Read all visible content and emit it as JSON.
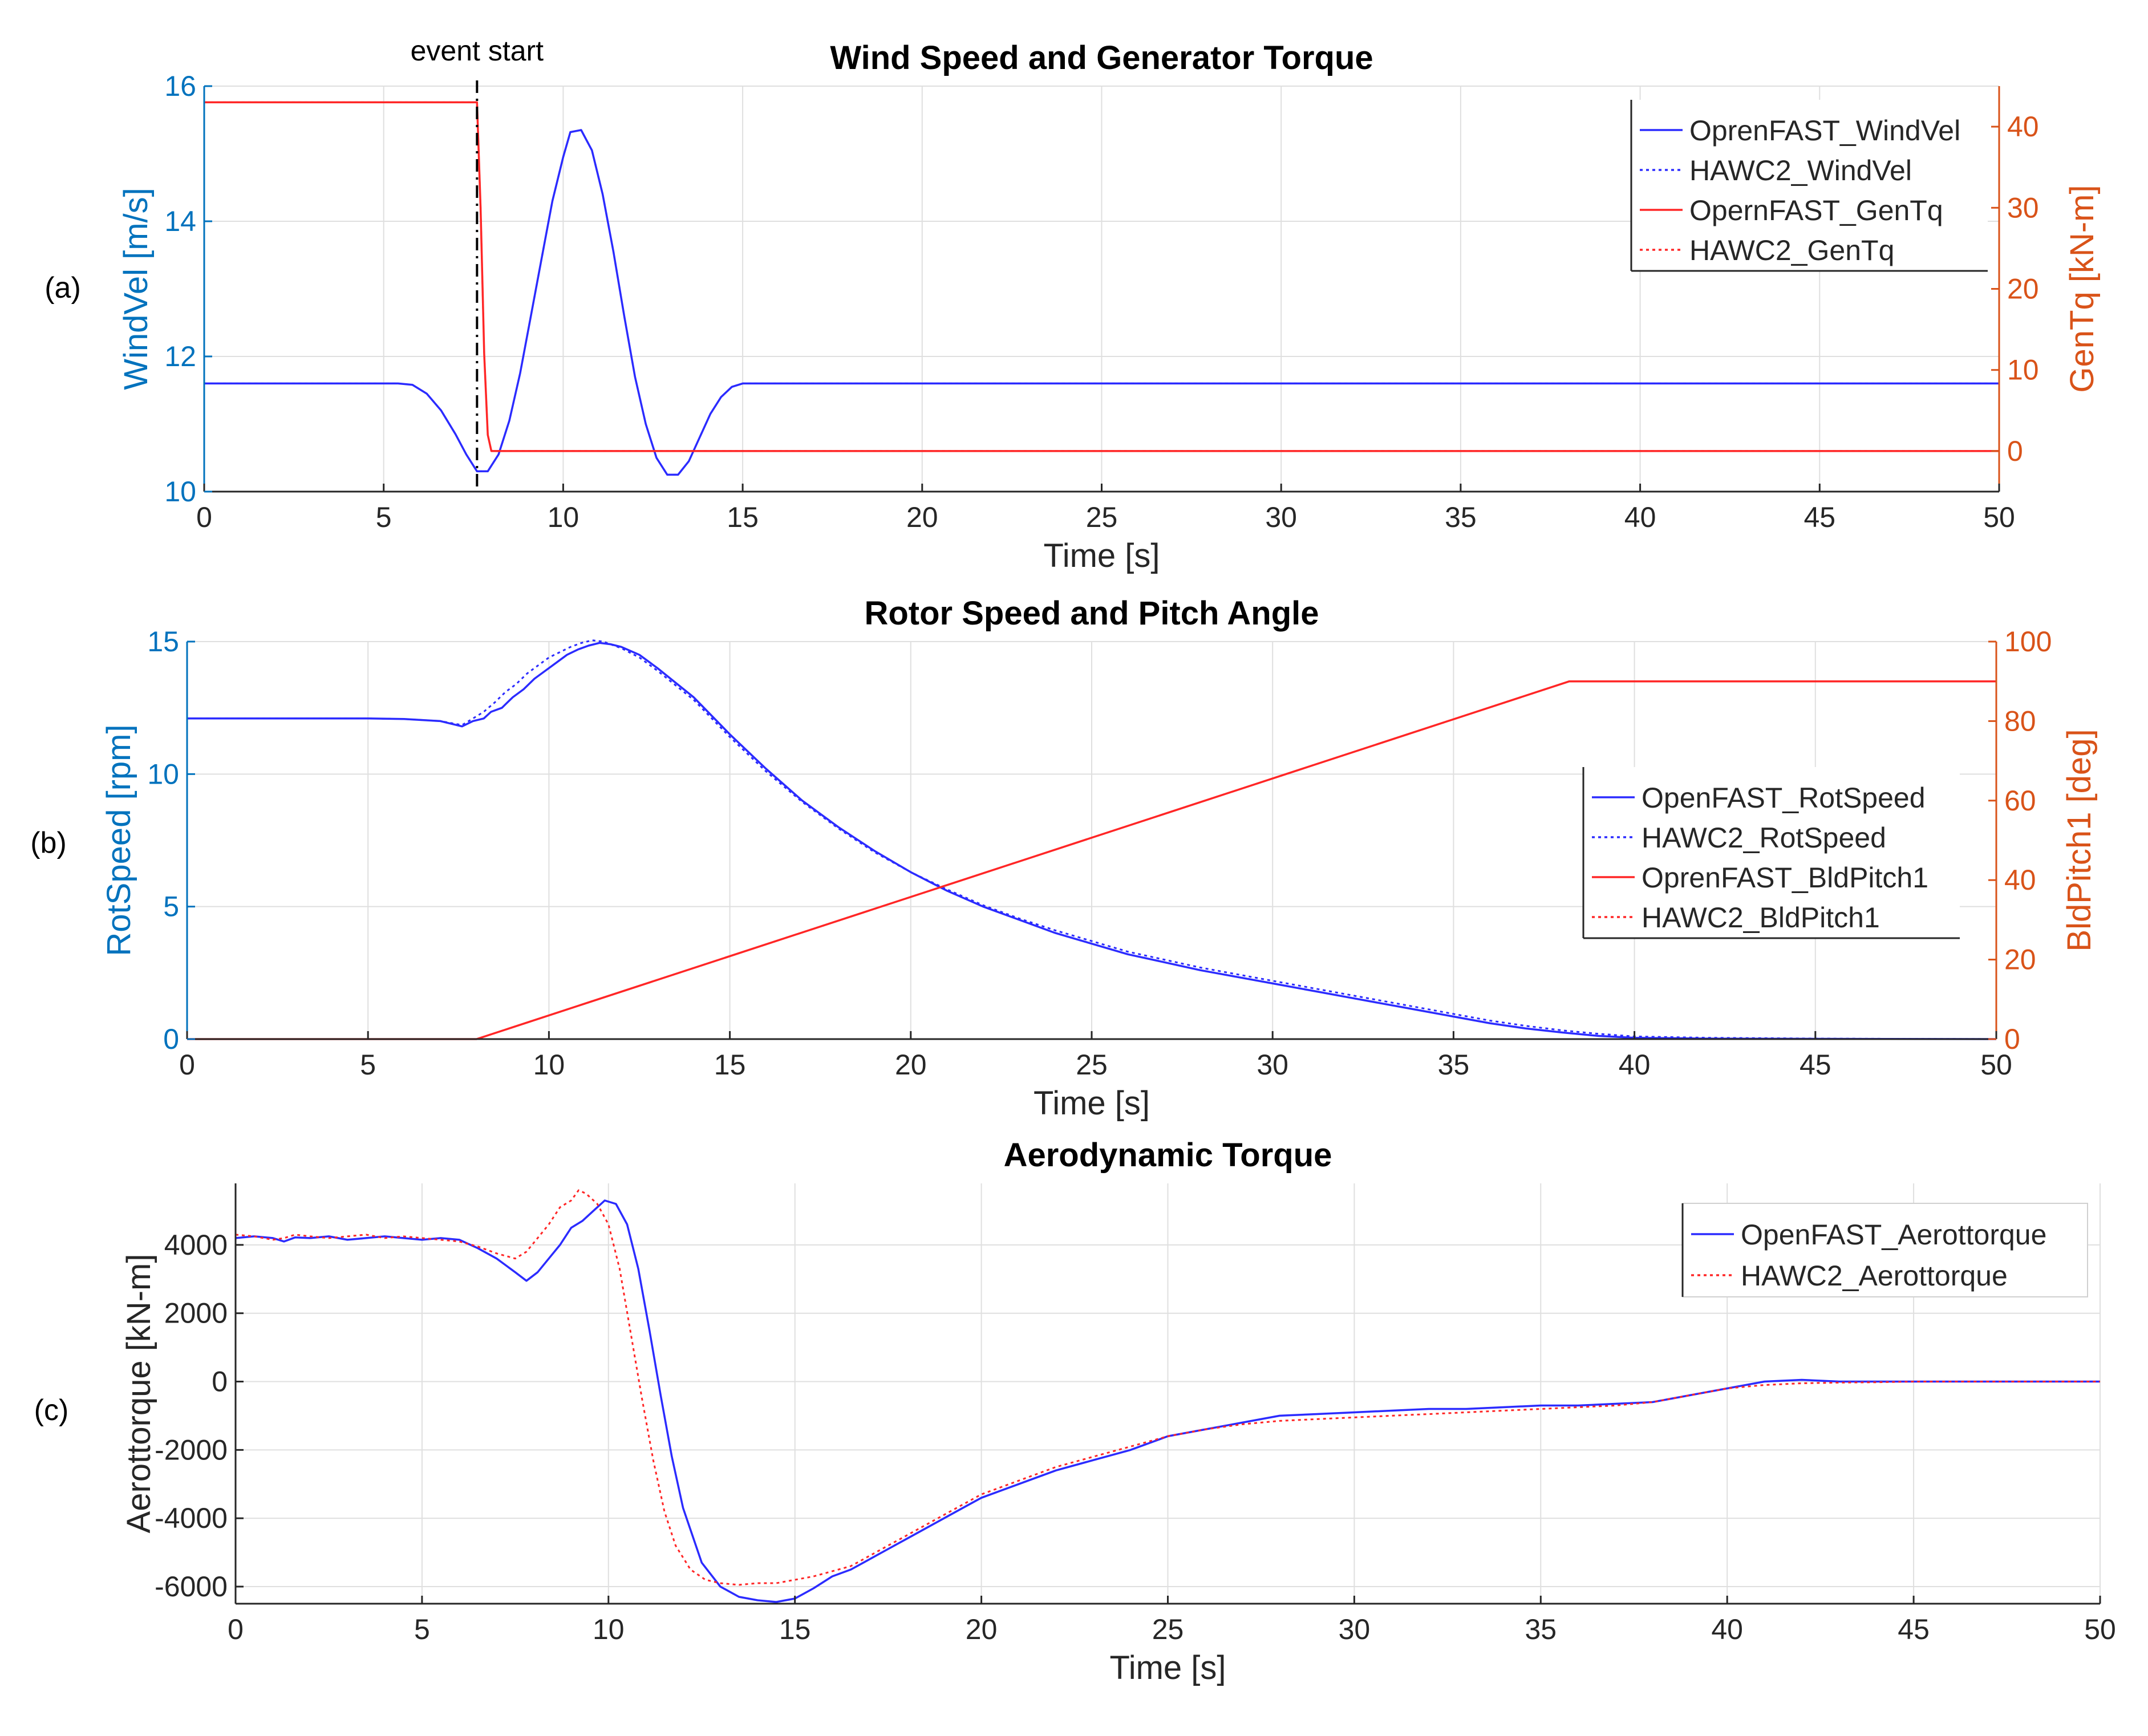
{
  "figure": {
    "panel_labels": [
      "(a)",
      "(b)",
      "(c)"
    ],
    "colors": {
      "axis": "#262626",
      "grid": "#dfdfdf",
      "left_axis_a_b": "#0072BD",
      "right_axis": "#D95319",
      "blue_series": "#2b2bff",
      "red_series": "#ff2626",
      "event_line": "#000000"
    }
  },
  "chart_data": [
    {
      "type": "line",
      "panel": "(a)",
      "title": "Wind Speed and Generator Torque",
      "xlabel": "Time [s]",
      "ylabel": "WindVel [m/s]",
      "ylabel_right": "GenTq [kN-m]",
      "xlim": [
        0,
        50
      ],
      "ylim": [
        10,
        16
      ],
      "ylim_right": [
        -5,
        45
      ],
      "x_ticks": [
        "0",
        "5",
        "10",
        "15",
        "20",
        "25",
        "30",
        "35",
        "40",
        "45",
        "50"
      ],
      "y_ticks": [
        "10",
        "12",
        "14",
        "16"
      ],
      "y_ticks_right": [
        "0",
        "10",
        "20",
        "30",
        "40"
      ],
      "grid": true,
      "legend_position": "top-right",
      "annotation": {
        "text": "event start",
        "x": 7.6
      },
      "series": [
        {
          "name": "OprenFAST_WindVel",
          "axis": "left",
          "style": "solid",
          "color": "blue",
          "x": [
            0,
            5.0,
            5.4,
            5.8,
            6.2,
            6.6,
            7.0,
            7.3,
            7.6,
            7.9,
            8.2,
            8.5,
            8.8,
            9.1,
            9.4,
            9.7,
            10.0,
            10.2,
            10.5,
            10.8,
            11.1,
            11.4,
            11.7,
            12.0,
            12.3,
            12.6,
            12.9,
            13.2,
            13.5,
            13.8,
            14.1,
            14.4,
            14.7,
            15.0,
            15.3,
            50
          ],
          "y": [
            11.6,
            11.6,
            11.6,
            11.58,
            11.45,
            11.2,
            10.85,
            10.55,
            10.3,
            10.3,
            10.55,
            11.05,
            11.75,
            12.6,
            13.45,
            14.3,
            14.95,
            15.32,
            15.35,
            15.05,
            14.4,
            13.55,
            12.6,
            11.7,
            11.0,
            10.5,
            10.25,
            10.25,
            10.45,
            10.8,
            11.15,
            11.4,
            11.55,
            11.6,
            11.6,
            11.6
          ]
        },
        {
          "name": "HAWC2_WindVel",
          "axis": "left",
          "style": "dotted",
          "color": "blue",
          "x": [
            0,
            5.0,
            5.4,
            5.8,
            6.2,
            6.6,
            7.0,
            7.3,
            7.6,
            7.9,
            8.2,
            8.5,
            8.8,
            9.1,
            9.4,
            9.7,
            10.0,
            10.2,
            10.5,
            10.8,
            11.1,
            11.4,
            11.7,
            12.0,
            12.3,
            12.6,
            12.9,
            13.2,
            13.5,
            13.8,
            14.1,
            14.4,
            14.7,
            15.0,
            15.3,
            50
          ],
          "y": [
            11.6,
            11.6,
            11.6,
            11.58,
            11.45,
            11.2,
            10.85,
            10.55,
            10.3,
            10.3,
            10.55,
            11.05,
            11.75,
            12.6,
            13.45,
            14.3,
            14.95,
            15.32,
            15.35,
            15.05,
            14.4,
            13.55,
            12.6,
            11.7,
            11.0,
            10.5,
            10.25,
            10.25,
            10.45,
            10.8,
            11.15,
            11.4,
            11.55,
            11.6,
            11.6,
            11.6
          ]
        },
        {
          "name": "OpernFAST_GenTq",
          "axis": "right",
          "style": "solid",
          "color": "red",
          "x": [
            0,
            7.6,
            7.7,
            7.8,
            7.9,
            8.0,
            50
          ],
          "y": [
            43,
            43,
            30,
            12,
            2,
            0,
            0
          ]
        },
        {
          "name": "HAWC2_GenTq",
          "axis": "right",
          "style": "dotted",
          "color": "red",
          "x": [
            0,
            7.6,
            7.7,
            7.8,
            7.9,
            8.0,
            50
          ],
          "y": [
            43,
            43,
            30,
            12,
            2,
            0,
            0
          ]
        }
      ]
    },
    {
      "type": "line",
      "panel": "(b)",
      "title": "Rotor Speed and Pitch Angle",
      "xlabel": "Time [s]",
      "ylabel": "RotSpeed [rpm]",
      "ylabel_right": "BldPitch1 [deg]",
      "xlim": [
        0,
        50
      ],
      "ylim": [
        0,
        15
      ],
      "ylim_right": [
        0,
        100
      ],
      "x_ticks": [
        "0",
        "5",
        "10",
        "15",
        "20",
        "25",
        "30",
        "35",
        "40",
        "45",
        "50"
      ],
      "y_ticks": [
        "0",
        "5",
        "10",
        "15"
      ],
      "y_ticks_right": [
        "0",
        "20",
        "40",
        "60",
        "80",
        "100"
      ],
      "grid": true,
      "legend_position": "center-right",
      "series": [
        {
          "name": "OpenFAST_RotSpeed",
          "axis": "left",
          "style": "solid",
          "color": "blue",
          "x": [
            0,
            5,
            6,
            7,
            7.6,
            7.9,
            8.2,
            8.4,
            8.7,
            9.0,
            9.3,
            9.6,
            9.9,
            10.2,
            10.5,
            10.8,
            11.1,
            11.4,
            11.7,
            12.0,
            12.5,
            13,
            14,
            15,
            16,
            17,
            18,
            19,
            20,
            21,
            22,
            23,
            24,
            25,
            26,
            27,
            28,
            29,
            30,
            31,
            32,
            33,
            34,
            35,
            36,
            37,
            38,
            39,
            40,
            42,
            45,
            50
          ],
          "y": [
            12.1,
            12.1,
            12.08,
            12.0,
            11.8,
            12.0,
            12.1,
            12.35,
            12.5,
            12.9,
            13.2,
            13.6,
            13.9,
            14.2,
            14.5,
            14.7,
            14.85,
            14.95,
            14.9,
            14.8,
            14.5,
            14.0,
            12.9,
            11.5,
            10.2,
            9.0,
            8.0,
            7.1,
            6.3,
            5.6,
            5.0,
            4.5,
            4.0,
            3.6,
            3.2,
            2.9,
            2.6,
            2.35,
            2.1,
            1.85,
            1.6,
            1.35,
            1.1,
            0.85,
            0.6,
            0.4,
            0.25,
            0.12,
            0.05,
            0.02,
            0.01,
            0.0
          ]
        },
        {
          "name": "HAWC2_RotSpeed",
          "axis": "left",
          "style": "dotted",
          "color": "blue",
          "x": [
            0,
            5,
            6,
            7,
            7.6,
            7.9,
            8.2,
            8.5,
            8.8,
            9.1,
            9.4,
            9.7,
            10.0,
            10.3,
            10.6,
            10.9,
            11.2,
            11.5,
            11.8,
            12.0,
            12.5,
            13,
            14,
            15,
            16,
            17,
            18,
            19,
            20,
            21,
            22,
            23,
            24,
            25,
            26,
            27,
            28,
            29,
            30,
            31,
            32,
            33,
            34,
            35,
            36,
            37,
            38,
            39,
            40,
            42,
            45,
            50
          ],
          "y": [
            12.1,
            12.1,
            12.08,
            12.0,
            11.85,
            12.1,
            12.35,
            12.7,
            13.1,
            13.4,
            13.8,
            14.1,
            14.4,
            14.6,
            14.8,
            14.95,
            15.05,
            15.0,
            14.85,
            14.75,
            14.4,
            13.9,
            12.8,
            11.4,
            10.1,
            8.95,
            7.95,
            7.05,
            6.3,
            5.65,
            5.05,
            4.55,
            4.1,
            3.7,
            3.3,
            3.0,
            2.7,
            2.45,
            2.2,
            1.95,
            1.7,
            1.45,
            1.2,
            0.95,
            0.7,
            0.5,
            0.33,
            0.2,
            0.1,
            0.05,
            0.02,
            0.0
          ]
        },
        {
          "name": "OprenFAST_BldPitch1",
          "axis": "right",
          "style": "solid",
          "color": "red",
          "x": [
            0,
            7.6,
            8.0,
            38.2,
            50
          ],
          "y": [
            0,
            0,
            0,
            90,
            90
          ]
        },
        {
          "name": "HAWC2_BldPitch1",
          "axis": "right",
          "style": "dotted",
          "color": "red",
          "x": [
            0,
            7.6,
            8.0,
            38.2,
            50
          ],
          "y": [
            0,
            0,
            0,
            90,
            90
          ]
        }
      ]
    },
    {
      "type": "line",
      "panel": "(c)",
      "title": "Aerodynamic Torque",
      "xlabel": "Time [s]",
      "ylabel": "Aerottorque [kN-m]",
      "xlim": [
        0,
        50
      ],
      "ylim": [
        -6500,
        5800
      ],
      "x_ticks": [
        "0",
        "5",
        "10",
        "15",
        "20",
        "25",
        "30",
        "35",
        "40",
        "45",
        "50"
      ],
      "y_ticks": [
        "-6000",
        "-4000",
        "-2000",
        "0",
        "2000",
        "4000"
      ],
      "grid": true,
      "legend_position": "top-right",
      "series": [
        {
          "name": "OpenFAST_Aerottorque",
          "style": "solid",
          "color": "blue",
          "x": [
            0,
            0.5,
            1.0,
            1.3,
            1.6,
            2.0,
            2.5,
            3.0,
            3.5,
            4.0,
            4.5,
            5.0,
            5.5,
            6.0,
            6.5,
            7.0,
            7.5,
            7.8,
            8.1,
            8.4,
            8.7,
            9.0,
            9.3,
            9.6,
            9.9,
            10.2,
            10.5,
            10.8,
            11.1,
            11.4,
            11.7,
            12.0,
            12.5,
            13.0,
            13.5,
            14.0,
            14.5,
            15.0,
            15.5,
            16.0,
            16.5,
            17.0,
            17.5,
            18.0,
            18.5,
            19.0,
            19.5,
            20.0,
            21.0,
            22.0,
            23.0,
            24.0,
            25.0,
            26.0,
            27.0,
            28.0,
            29.0,
            30.0,
            31.0,
            32.0,
            33.0,
            34.0,
            35.0,
            36.0,
            37.0,
            38.0,
            39.0,
            40.0,
            41.0,
            42.0,
            43.0,
            44.0,
            45.0,
            47.0,
            50.0
          ],
          "y": [
            4200,
            4250,
            4200,
            4100,
            4220,
            4200,
            4250,
            4150,
            4200,
            4250,
            4200,
            4150,
            4200,
            4150,
            3900,
            3600,
            3200,
            2950,
            3200,
            3600,
            4000,
            4500,
            4700,
            5000,
            5300,
            5200,
            4600,
            3300,
            1500,
            -400,
            -2200,
            -3700,
            -5300,
            -6000,
            -6300,
            -6400,
            -6450,
            -6350,
            -6050,
            -5700,
            -5500,
            -5200,
            -4900,
            -4600,
            -4300,
            -4000,
            -3700,
            -3400,
            -3000,
            -2600,
            -2300,
            -2000,
            -1600,
            -1400,
            -1200,
            -1000,
            -950,
            -900,
            -850,
            -800,
            -800,
            -750,
            -700,
            -700,
            -650,
            -600,
            -400,
            -200,
            0,
            50,
            0,
            0,
            0,
            0,
            0
          ]
        },
        {
          "name": "HAWC2_Aerottorque",
          "style": "dotted",
          "color": "red",
          "x": [
            0,
            0.5,
            1.0,
            1.3,
            1.6,
            2.0,
            2.5,
            3.0,
            3.5,
            4.0,
            4.5,
            5.0,
            5.5,
            6.0,
            6.5,
            7.0,
            7.5,
            7.8,
            8.1,
            8.4,
            8.7,
            9.0,
            9.2,
            9.4,
            9.7,
            10.0,
            10.3,
            10.6,
            10.9,
            11.2,
            11.5,
            11.8,
            12.2,
            12.6,
            13.0,
            13.5,
            14.0,
            14.5,
            15.0,
            15.5,
            16.0,
            16.5,
            17.0,
            17.5,
            18.0,
            18.5,
            19.0,
            19.5,
            20.0,
            21.0,
            22.0,
            23.0,
            24.0,
            25.0,
            26.0,
            27.0,
            28.0,
            29.0,
            30.0,
            31.0,
            32.0,
            33.0,
            34.0,
            35.0,
            36.0,
            37.0,
            38.0,
            39.0,
            40.0,
            41.0,
            42.0,
            43.0,
            44.0,
            45.0,
            47.0,
            50.0
          ],
          "y": [
            4300,
            4250,
            4150,
            4200,
            4300,
            4250,
            4200,
            4250,
            4300,
            4200,
            4250,
            4200,
            4150,
            4100,
            3950,
            3750,
            3600,
            3800,
            4200,
            4600,
            5100,
            5300,
            5600,
            5500,
            5200,
            4600,
            3300,
            1400,
            -500,
            -2300,
            -3800,
            -4800,
            -5500,
            -5800,
            -5900,
            -5950,
            -5900,
            -5900,
            -5800,
            -5700,
            -5550,
            -5400,
            -5100,
            -4800,
            -4500,
            -4200,
            -3900,
            -3600,
            -3300,
            -2900,
            -2500,
            -2200,
            -1900,
            -1600,
            -1400,
            -1250,
            -1150,
            -1100,
            -1050,
            -1000,
            -950,
            -900,
            -850,
            -800,
            -750,
            -700,
            -600,
            -400,
            -200,
            -100,
            -50,
            -30,
            -20,
            0,
            0,
            0
          ]
        }
      ]
    }
  ]
}
